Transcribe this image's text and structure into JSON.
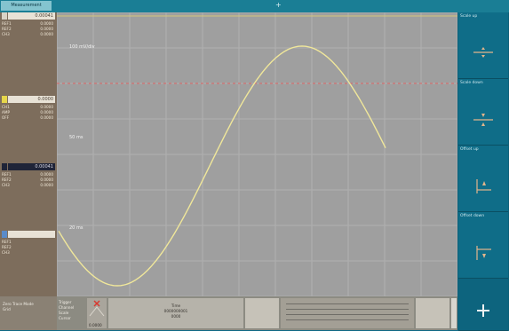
{
  "topbar": {
    "tag": "Measurement",
    "center_mark": "+"
  },
  "channels": [
    {
      "color": "#d9d3c6",
      "value": "0.00041",
      "rows": [
        [
          "REF1",
          "0.0000"
        ],
        [
          "REF2",
          "0.0000"
        ],
        [
          "CH3",
          "0.0000"
        ]
      ]
    },
    {
      "color": "#e6d64a",
      "value": "0.0000",
      "rows": [
        [
          "CH1",
          "0.0000"
        ],
        [
          "AMP",
          "0.0000"
        ],
        [
          "OFF",
          "0.0000"
        ]
      ]
    },
    {
      "color": "#1f2438",
      "value": "0.00041",
      "rows": [
        [
          "REF1",
          "0.0000"
        ],
        [
          "REF2",
          "0.0000"
        ],
        [
          "CH3",
          "0.0000"
        ]
      ]
    },
    {
      "color": "#5a8bc9",
      "value": "",
      "rows": [
        [
          "REF1",
          ""
        ],
        [
          "REF2",
          ""
        ],
        [
          "CH3",
          ""
        ]
      ]
    }
  ],
  "plot": {
    "labels": {
      "top": "100 mV/div",
      "mid": "50 ms",
      "low": "20 ms"
    },
    "colors": {
      "background": "#9f9f9f",
      "grid": "#b1b1b1",
      "trace": "#f0e79a",
      "reference": "#e16565"
    }
  },
  "softkeys": [
    {
      "label": "Scale up",
      "icon": "scale-up-icon"
    },
    {
      "label": "Scale down",
      "icon": "scale-down-icon"
    },
    {
      "label": "Offset up",
      "icon": "offset-up-icon"
    },
    {
      "label": "Offset down",
      "icon": "offset-down-icon"
    },
    {
      "label": "",
      "icon": "plus-icon"
    }
  ],
  "bottombar": {
    "left_lines": [
      "Zero  Trace  Mode",
      "Grid"
    ],
    "mid_lines": [
      "Trigger",
      "Channel",
      "Scale",
      "Cursor"
    ],
    "marker_value": "0.0000",
    "center_lines": [
      "Time",
      "0000000001",
      "0000"
    ]
  }
}
